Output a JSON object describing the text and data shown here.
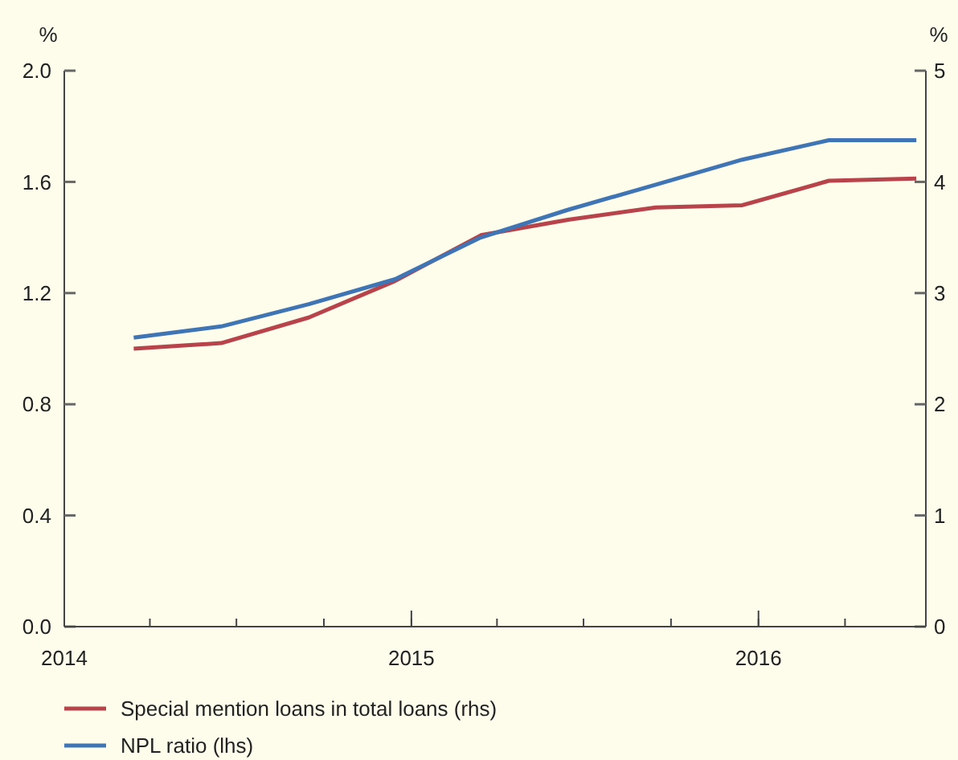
{
  "chart_data": {
    "type": "line",
    "x": [
      "2014-03-15",
      "2014-06-15",
      "2014-09-15",
      "2014-12-15",
      "2015-03-15",
      "2015-06-15",
      "2015-09-15",
      "2015-12-15",
      "2016-03-15",
      "2016-06-15"
    ],
    "series": [
      {
        "name": "Special mention loans in total loans (rhs)",
        "color": "#b8434a",
        "axis": "y2",
        "values": [
          2.5,
          2.55,
          2.78,
          3.11,
          3.52,
          3.66,
          3.77,
          3.79,
          4.01,
          4.03
        ]
      },
      {
        "name": "NPL ratio (lhs)",
        "color": "#3f74b5",
        "values": [
          1.04,
          1.08,
          1.16,
          1.25,
          1.4,
          1.5,
          1.59,
          1.68,
          1.75,
          1.75
        ]
      }
    ],
    "ylabel": "%",
    "y2label": "%",
    "xlim": [
      "2014-01-01",
      "2016-06-25"
    ],
    "xticks": [
      {
        "value": "2014-01-01",
        "label": "2014"
      },
      {
        "value": "2015-01-01",
        "label": "2015"
      },
      {
        "value": "2016-01-01",
        "label": "2016"
      }
    ],
    "ylim": [
      0,
      2
    ],
    "yticks": [
      {
        "value": 0,
        "label": "0.0"
      },
      {
        "value": 0.4,
        "label": "0.4"
      },
      {
        "value": 0.8,
        "label": "0.8"
      },
      {
        "value": 1.2,
        "label": "1.2"
      },
      {
        "value": 1.6,
        "label": "1.6"
      },
      {
        "value": 2,
        "label": "2.0"
      }
    ],
    "y2lim": [
      0,
      5
    ],
    "y2ticks": [
      0,
      1,
      2,
      3,
      4,
      5
    ],
    "legend": "bottom",
    "grid": false,
    "marker": "none",
    "line_style": "solid"
  }
}
